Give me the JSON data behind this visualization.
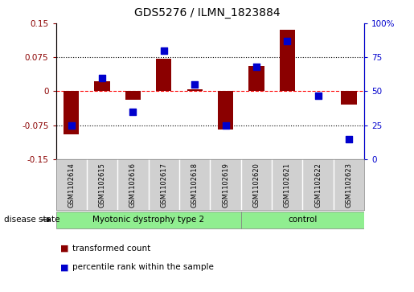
{
  "title": "GDS5276 / ILMN_1823884",
  "samples": [
    "GSM1102614",
    "GSM1102615",
    "GSM1102616",
    "GSM1102617",
    "GSM1102618",
    "GSM1102619",
    "GSM1102620",
    "GSM1102621",
    "GSM1102622",
    "GSM1102623"
  ],
  "red_values": [
    -0.095,
    0.022,
    -0.018,
    0.072,
    0.005,
    -0.085,
    0.055,
    0.135,
    0.0,
    -0.03
  ],
  "blue_values": [
    25,
    60,
    35,
    80,
    55,
    25,
    68,
    87,
    47,
    15
  ],
  "groups": [
    {
      "label": "Myotonic dystrophy type 2",
      "start": 0,
      "end": 6
    },
    {
      "label": "control",
      "start": 6,
      "end": 10
    }
  ],
  "group_color": "#90EE90",
  "ylim_left": [
    -0.15,
    0.15
  ],
  "ylim_right": [
    0,
    100
  ],
  "yticks_left": [
    -0.15,
    -0.075,
    0,
    0.075,
    0.15
  ],
  "yticks_right": [
    0,
    25,
    50,
    75,
    100
  ],
  "ytick_labels_left": [
    "-0.15",
    "-0.075",
    "0",
    "0.075",
    "0.15"
  ],
  "ytick_labels_right": [
    "0",
    "25",
    "50",
    "75",
    "100%"
  ],
  "hlines_dotted": [
    0.075,
    -0.075
  ],
  "hline_dashed": 0.0,
  "red_color": "#8B0000",
  "blue_color": "#0000CD",
  "bar_width": 0.5,
  "dot_size": 30,
  "legend_red": "transformed count",
  "legend_blue": "percentile rank within the sample",
  "disease_state_label": "disease state",
  "sample_box_color": "#d0d0d0",
  "plot_bg": "#ffffff"
}
